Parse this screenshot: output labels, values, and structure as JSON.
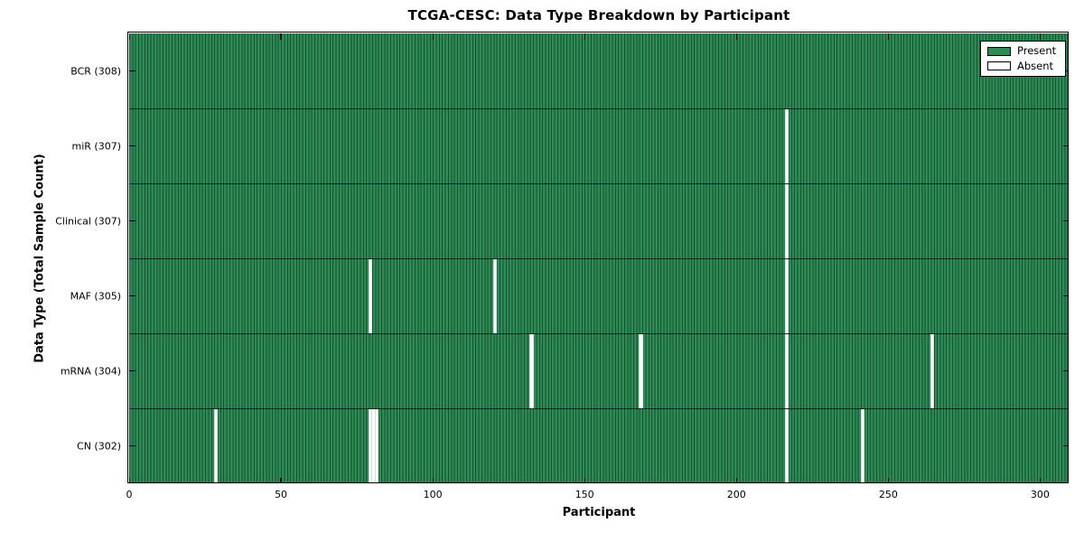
{
  "title": "TCGA-CESC: Data Type Breakdown by Participant",
  "x_axis_label": "Participant",
  "y_axis_label": "Data Type (Total Sample Count)",
  "legend": {
    "present_label": "Present",
    "absent_label": "Absent"
  },
  "colors": {
    "present": "#2e8b57",
    "bar_edge": "#17512f",
    "absent": "#ffffff",
    "row_divider": "rgba(0,0,0,0.65)",
    "axis": "#000000",
    "background": "#ffffff"
  },
  "chart_data": {
    "type": "heatmap",
    "title": "TCGA-CESC: Data Type Breakdown by Participant",
    "xlabel": "Participant",
    "ylabel": "Data Type (Total Sample Count)",
    "legend_entries": [
      "Present",
      "Absent"
    ],
    "legend_position": "upper right",
    "grid": false,
    "total_participants": 308,
    "xlim": [
      0,
      309.4
    ],
    "x_ticks": [
      0,
      50,
      100,
      150,
      200,
      250,
      300
    ],
    "rows": [
      {
        "data_type": "BCR",
        "label": "BCR (308)",
        "present_count": 308,
        "absent_participants": []
      },
      {
        "data_type": "miR",
        "label": "miR (307)",
        "present_count": 307,
        "absent_participants": [
          217
        ]
      },
      {
        "data_type": "Clinical",
        "label": "Clinical (307)",
        "present_count": 307,
        "absent_participants": [
          217
        ]
      },
      {
        "data_type": "MAF",
        "label": "MAF (305)",
        "present_count": 305,
        "absent_participants": [
          80,
          121,
          217
        ]
      },
      {
        "data_type": "mRNA",
        "label": "mRNA (304)",
        "present_count": 304,
        "absent_participants": [
          133,
          169,
          217,
          265
        ]
      },
      {
        "data_type": "CN",
        "label": "CN (302)",
        "present_count": 302,
        "absent_participants": [
          29,
          80,
          81,
          82,
          217,
          242
        ]
      }
    ]
  }
}
